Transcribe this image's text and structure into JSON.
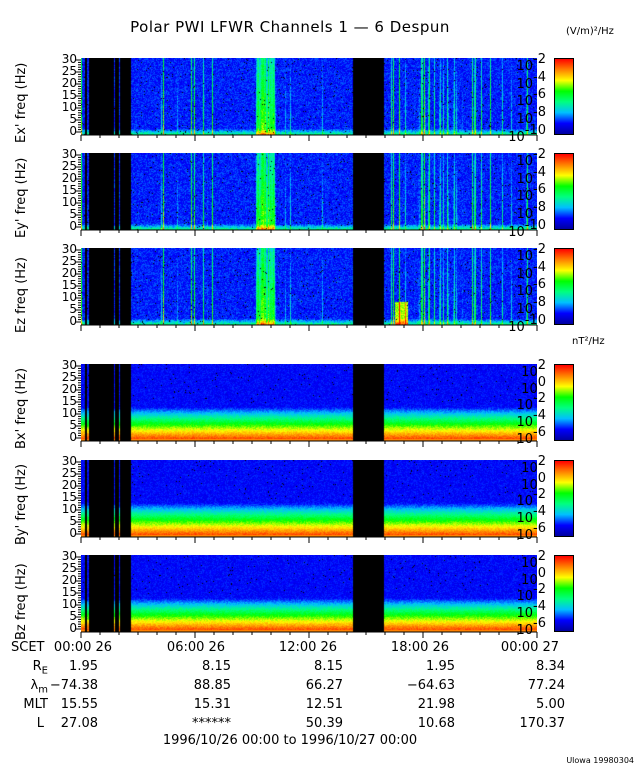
{
  "title": "Polar PWI LFWR Channels 1 — 6 Despun",
  "chart_data": {
    "type": "heatmap",
    "title": "Polar PWI LFWR Channels 1 — 6 Despun",
    "x_range_hours": [
      0,
      24
    ],
    "data_gaps_hours": [
      [
        0.2,
        0.3
      ],
      [
        0.4,
        1.7
      ],
      [
        1.75,
        1.95
      ],
      [
        2.05,
        2.6
      ],
      [
        14.3,
        15.9
      ]
    ],
    "colormap": [
      "#0000a0",
      "#0000ff",
      "#00c0ff",
      "#00ff80",
      "#00ff00",
      "#ffff00",
      "#ff8000",
      "#ff0000"
    ],
    "panels": [
      {
        "ylabel": "Ex' freq (Hz)",
        "type": "E",
        "yticks": [
          "30",
          "25",
          "20",
          "15",
          "10",
          "5",
          "0"
        ],
        "ylim": [
          0,
          30
        ]
      },
      {
        "ylabel": "Ey' freq (Hz)",
        "type": "E",
        "yticks": [
          "30",
          "25",
          "20",
          "15",
          "10",
          "5",
          "0"
        ],
        "ylim": [
          0,
          30
        ]
      },
      {
        "ylabel": "Ez freq (Hz)",
        "type": "E",
        "yticks": [
          "30",
          "25",
          "20",
          "15",
          "10",
          "5",
          "0"
        ],
        "ylim": [
          0,
          30
        ]
      },
      {
        "ylabel": "Bx' freq (Hz)",
        "type": "B",
        "yticks": [
          "30",
          "25",
          "20",
          "15",
          "10",
          "5",
          "0"
        ],
        "ylim": [
          0,
          30
        ]
      },
      {
        "ylabel": "By' freq (Hz)",
        "type": "B",
        "yticks": [
          "30",
          "25",
          "20",
          "15",
          "10",
          "5",
          "0"
        ],
        "ylim": [
          0,
          30
        ]
      },
      {
        "ylabel": "Bz freq (Hz)",
        "type": "B",
        "yticks": [
          "30",
          "25",
          "20",
          "15",
          "10",
          "5",
          "0"
        ],
        "ylim": [
          0,
          30
        ]
      }
    ],
    "colorbars": {
      "E": {
        "unit": "(V/m)²/Hz",
        "exponents": [
          "-2",
          "-4",
          "-6",
          "-8",
          "-10"
        ],
        "range_log10": [
          -10.5,
          -2
        ]
      },
      "B": {
        "unit": "nT²/Hz",
        "exponents": [
          "2",
          "0",
          "-2",
          "-4",
          "-6"
        ],
        "range_log10": [
          -7,
          2
        ]
      }
    }
  },
  "ephemeris": {
    "rows": [
      {
        "label": "SCET",
        "values": [
          "00:00 26",
          "06:00 26",
          "12:00 26",
          "18:00 26",
          "00:00 27"
        ]
      },
      {
        "label": "R",
        "sub": "E",
        "values": [
          "1.95",
          "8.15",
          "8.15",
          "1.95",
          "8.34"
        ]
      },
      {
        "label": "λ",
        "sub": "m",
        "values": [
          "−74.38",
          "88.85",
          "66.27",
          "−64.63",
          "77.24"
        ]
      },
      {
        "label": "MLT",
        "values": [
          "15.55",
          "15.31",
          "12.51",
          "21.98",
          "5.00"
        ]
      },
      {
        "label": "L",
        "values": [
          "27.08",
          "******",
          "50.39",
          "10.68",
          "170.37"
        ]
      }
    ],
    "range": "1996/10/26 00:00 to 1996/10/27 00:00"
  },
  "credit": "Ulowa 19980304"
}
